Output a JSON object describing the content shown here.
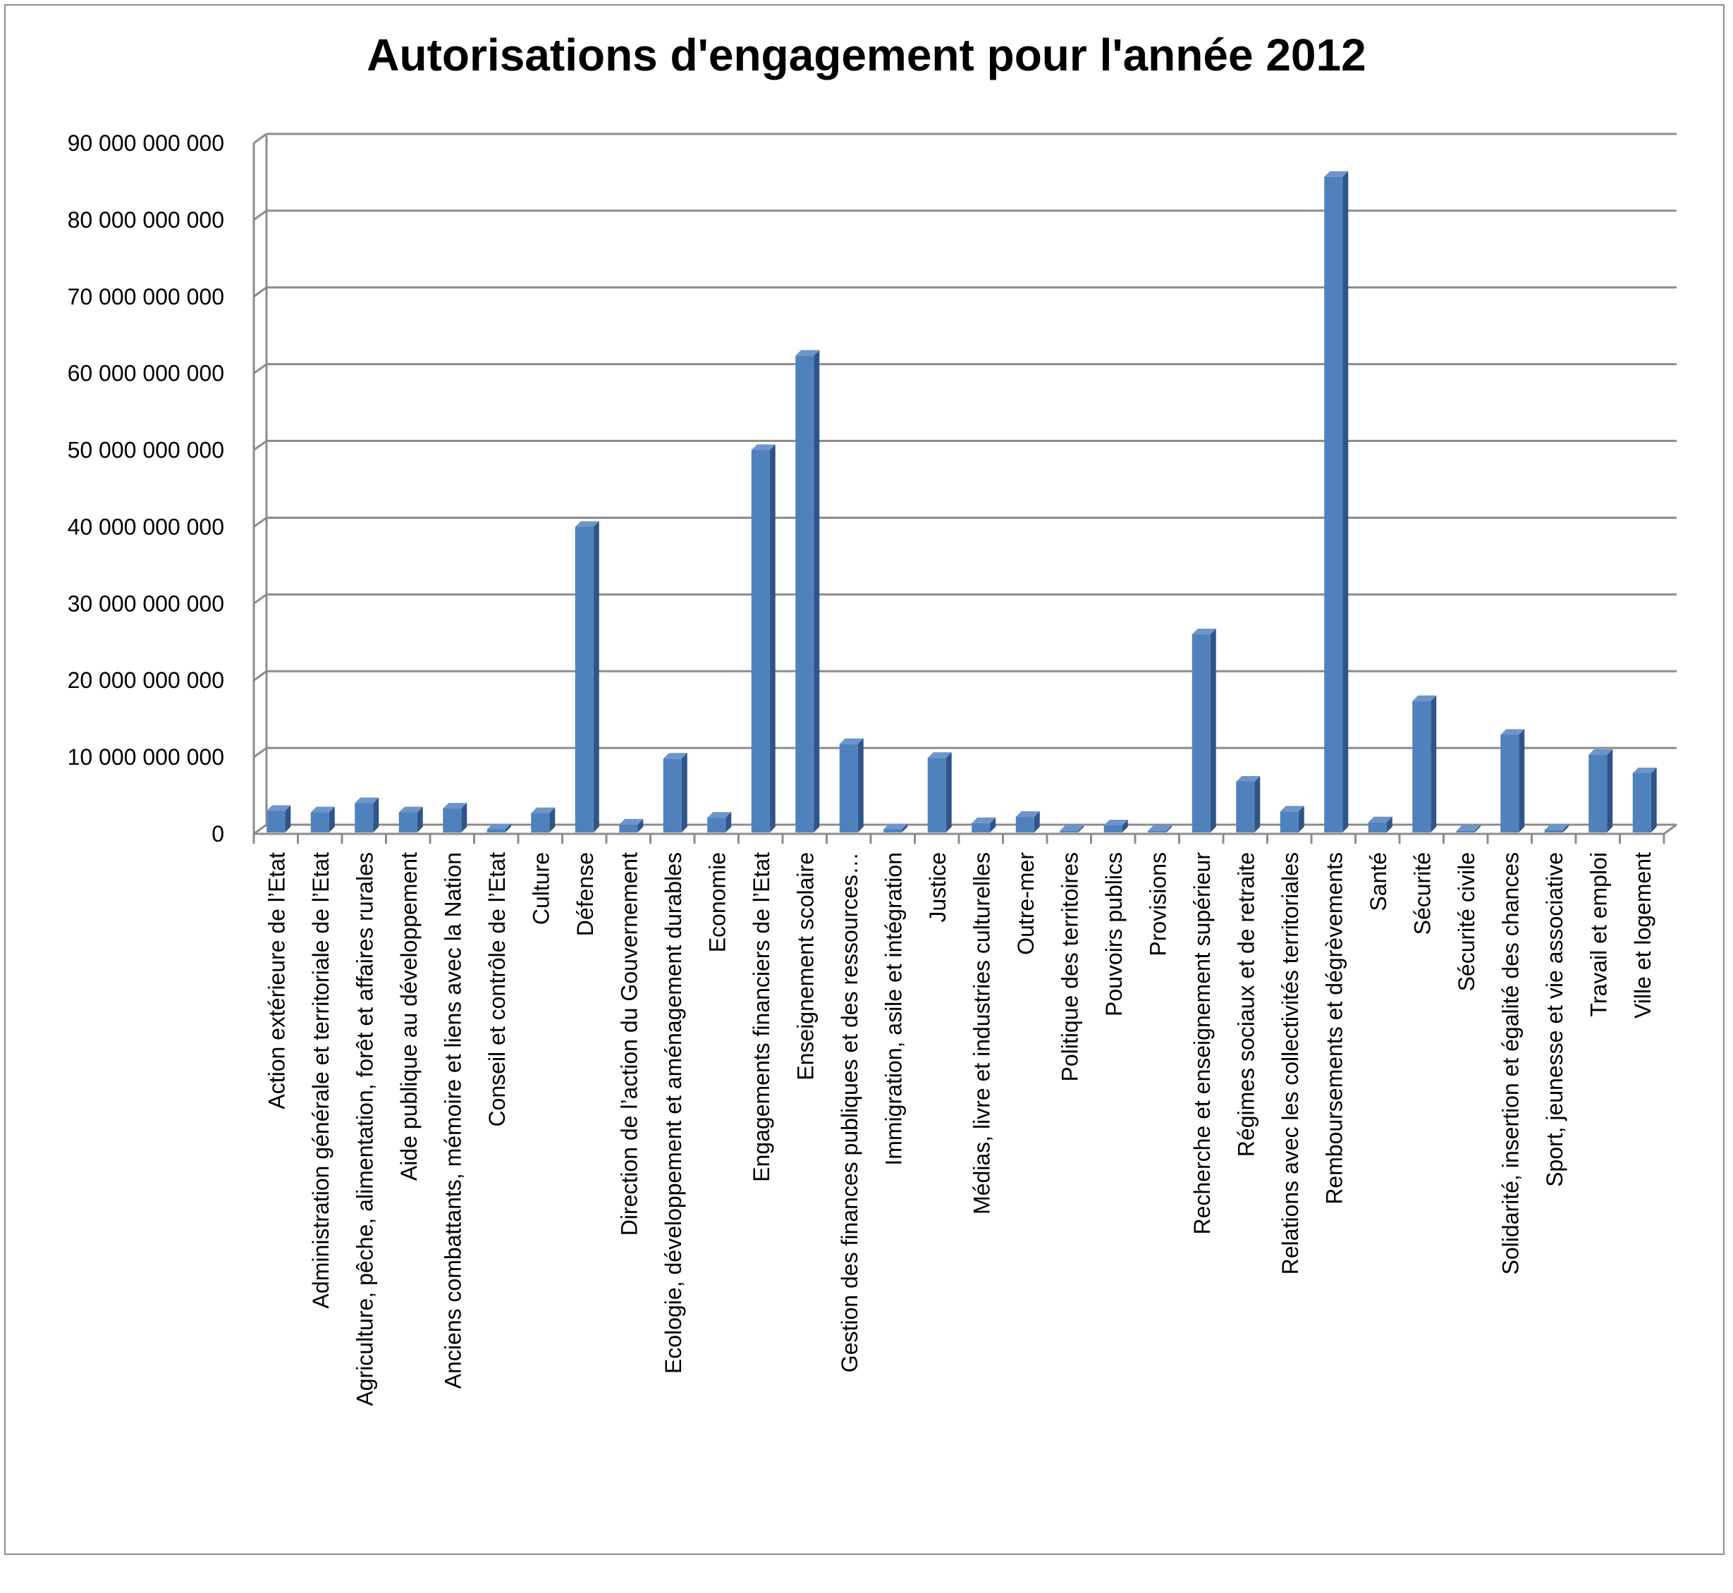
{
  "chart_data": {
    "type": "bar",
    "title": "Autorisations d'engagement pour l'année 2012",
    "xlabel": "",
    "ylabel": "",
    "ylim": [
      0,
      90000000000
    ],
    "yticks": [
      0,
      10000000000,
      20000000000,
      30000000000,
      40000000000,
      50000000000,
      60000000000,
      70000000000,
      80000000000,
      90000000000
    ],
    "ytick_labels": [
      "0",
      "10 000 000 000",
      "20 000 000 000",
      "30 000 000 000",
      "40 000 000 000",
      "50 000 000 000",
      "60 000 000 000",
      "70 000 000 000",
      "80 000 000 000",
      "90 000 000 000"
    ],
    "grid": true,
    "legend": "none",
    "style": "3d-column",
    "colors": {
      "bar_front": "#4f81bd",
      "bar_side": "#2f5488",
      "bar_top": "#6d95c9",
      "grid": "#8c8c8c",
      "axis": "#8c8c8c",
      "frame": "#8c8c8c"
    },
    "categories": [
      "Action extérieure de l’Etat",
      "Administration générale et territoriale de l’Etat",
      "Agriculture, pêche, alimentation, forêt et affaires rurales",
      "Aide publique au développement",
      "Anciens combattants, mémoire et liens avec la Nation",
      "Conseil et contrôle de l’Etat",
      "Culture",
      "Défense",
      "Direction de l’action du Gouvernement",
      "Ecologie, développement et aménagement durables",
      "Economie",
      "Engagements financiers de l’Etat",
      "Enseignement scolaire",
      "Gestion des finances publiques et des ressources…",
      "Immigration, asile et intégration",
      "Justice",
      "Médias, livre et industries culturelles",
      "Outre-mer",
      "Politique des territoires",
      "Pouvoirs publics",
      "Provisions",
      "Recherche et enseignement supérieur",
      "Régimes sociaux et de retraite",
      "Relations avec les collectivités territoriales",
      "Remboursements et dégrèvements",
      "Santé",
      "Sécurité",
      "Sécurité civile",
      "Solidarité, insertion et égalité des chances",
      "Sport, jeunesse et vie associative",
      "Travail et emploi",
      "Ville et logement"
    ],
    "values": [
      3000000000,
      2800000000,
      4000000000,
      2800000000,
      3300000000,
      600000000,
      2700000000,
      40000000000,
      1200000000,
      9800000000,
      2100000000,
      50000000000,
      62300000000,
      11700000000,
      600000000,
      9900000000,
      1400000000,
      2200000000,
      400000000,
      1100000000,
      400000000,
      26000000000,
      6800000000,
      2900000000,
      85600000000,
      1500000000,
      17300000000,
      400000000,
      12900000000,
      500000000,
      10300000000,
      7900000000
    ]
  }
}
